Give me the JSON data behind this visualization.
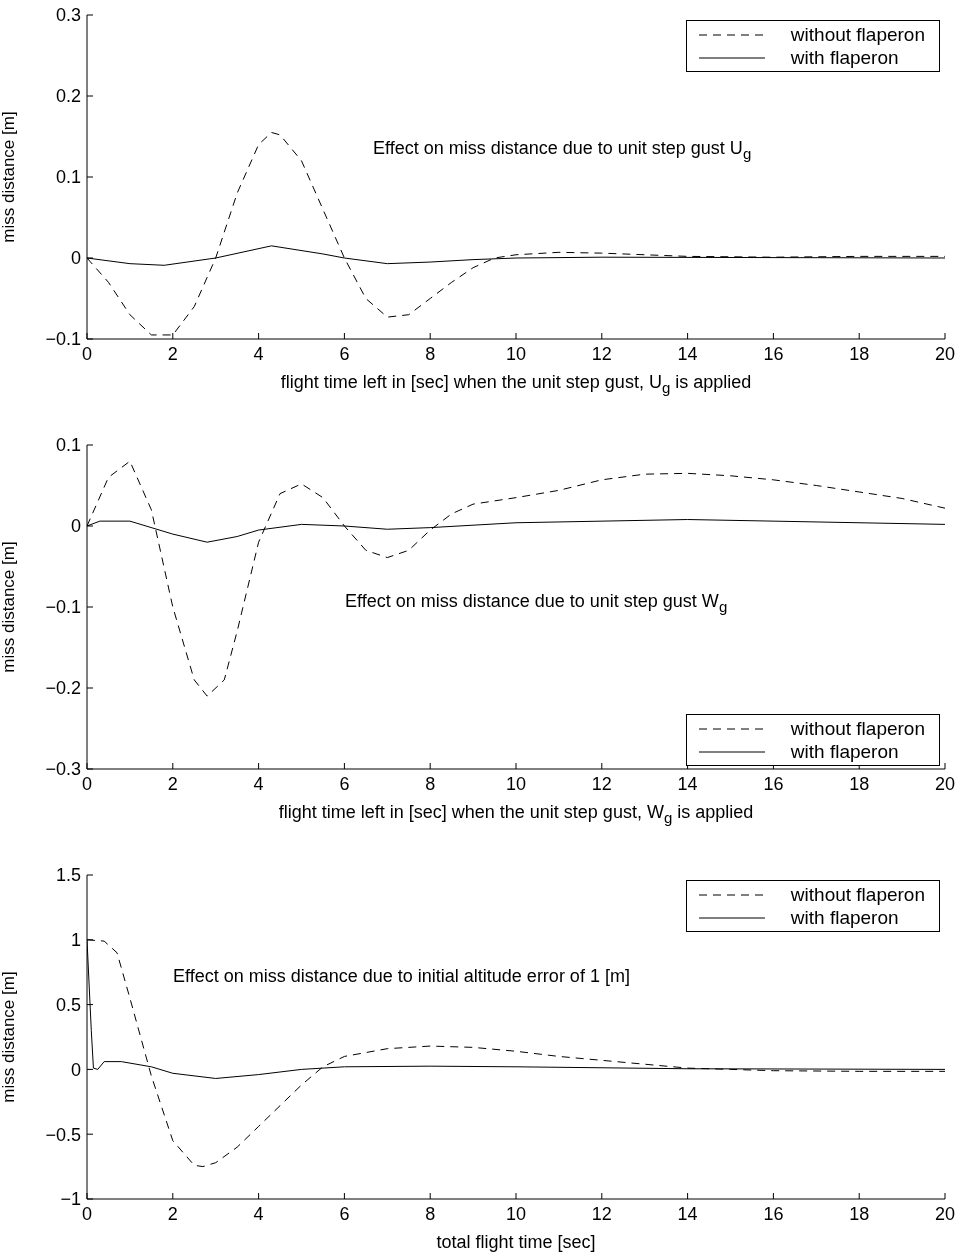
{
  "chart_data": [
    {
      "type": "line",
      "xlabel": "flight time left in [sec] when the unit step gust, U$_{g}$ is applied",
      "ylabel": "miss distance [m]",
      "annotations": [
        "Effect on miss distance due to unit step gust U$_{g}$"
      ],
      "xlim": [
        0,
        20
      ],
      "xticks": [
        0,
        2,
        4,
        6,
        8,
        10,
        12,
        14,
        16,
        18,
        20
      ],
      "ylim": [
        -0.1,
        0.3
      ],
      "yticks": [
        {
          "value": -0.1,
          "label": "−0.1"
        },
        0,
        0.1,
        0.2,
        0.3
      ],
      "legend": "top right",
      "series": [
        {
          "name": "without flaperon",
          "color": "#000000",
          "line_style": "dashed",
          "x": [
            0,
            0.5,
            1,
            1.5,
            2,
            2.5,
            3,
            3.5,
            4,
            4.3,
            4.5,
            5,
            5.5,
            6,
            6.5,
            7,
            7.5,
            8,
            8.5,
            9,
            9.5,
            10,
            11,
            12,
            13,
            14,
            16,
            18,
            20
          ],
          "values": [
            0,
            -0.03,
            -0.07,
            -0.095,
            -0.095,
            -0.06,
            0,
            0.08,
            0.14,
            0.155,
            0.152,
            0.12,
            0.06,
            0,
            -0.05,
            -0.073,
            -0.07,
            -0.05,
            -0.03,
            -0.012,
            0,
            0.004,
            0.007,
            0.006,
            0.004,
            0.002,
            0.001,
            0.002,
            0.002
          ]
        },
        {
          "name": "with flaperon",
          "color": "#000000",
          "line_style": "solid",
          "x": [
            0,
            1,
            1.8,
            3,
            4.3,
            5.5,
            6,
            7,
            8,
            9,
            10,
            12,
            20
          ],
          "values": [
            0,
            -0.007,
            -0.009,
            0,
            0.015,
            0.005,
            0,
            -0.007,
            -0.005,
            -0.002,
            0,
            0.001,
            0
          ]
        }
      ]
    },
    {
      "type": "line",
      "xlabel": "flight time left in [sec] when the unit step gust, W$_{g}$ is applied",
      "ylabel": "miss distance [m]",
      "annotations": [
        "Effect on miss distance due to unit step gust W$_{g}$"
      ],
      "xlim": [
        0,
        20
      ],
      "xticks": [
        0,
        2,
        4,
        6,
        8,
        10,
        12,
        14,
        16,
        18,
        20
      ],
      "ylim": [
        -0.3,
        0.1
      ],
      "yticks": [
        {
          "value": -0.3,
          "label": "−0.3"
        },
        {
          "value": -0.2,
          "label": "−0.2"
        },
        {
          "value": -0.1,
          "label": "−0.1"
        },
        0,
        0.1
      ],
      "legend": "bottom right",
      "series": [
        {
          "name": "without flaperon",
          "color": "#000000",
          "line_style": "dashed",
          "x": [
            0,
            0.5,
            1,
            1.5,
            2,
            2.5,
            2.8,
            3.2,
            3.5,
            4,
            4.5,
            5,
            5.5,
            6,
            6.5,
            7,
            7.5,
            8,
            8.5,
            9,
            10,
            11,
            12,
            13,
            14,
            15,
            16,
            17,
            18,
            19,
            20
          ],
          "values": [
            0,
            0.06,
            0.08,
            0.02,
            -0.1,
            -0.19,
            -0.21,
            -0.19,
            -0.13,
            -0.02,
            0.04,
            0.052,
            0.035,
            0,
            -0.03,
            -0.039,
            -0.03,
            -0.005,
            0.015,
            0.027,
            0.035,
            0.044,
            0.057,
            0.064,
            0.065,
            0.062,
            0.057,
            0.05,
            0.042,
            0.034,
            0.022
          ]
        },
        {
          "name": "with flaperon",
          "color": "#000000",
          "line_style": "solid",
          "x": [
            0,
            0.3,
            1,
            2,
            2.8,
            3.5,
            4,
            5,
            6,
            7,
            8,
            10,
            14,
            20
          ],
          "values": [
            0,
            0.006,
            0.006,
            -0.01,
            -0.02,
            -0.013,
            -0.005,
            0.002,
            0,
            -0.004,
            -0.002,
            0.004,
            0.008,
            0.002
          ]
        }
      ]
    },
    {
      "type": "line",
      "xlabel": "total flight time [sec]",
      "ylabel": "miss distance [m]",
      "annotations": [
        "Effect on miss distance due to initial altitude error of 1 [m]"
      ],
      "xlim": [
        0,
        20
      ],
      "xticks": [
        0,
        2,
        4,
        6,
        8,
        10,
        12,
        14,
        16,
        18,
        20
      ],
      "ylim": [
        -1,
        1.5
      ],
      "yticks": [
        {
          "value": -1,
          "label": "−1"
        },
        {
          "value": -0.5,
          "label": "−0.5"
        },
        0,
        0.5,
        1,
        1.5
      ],
      "legend": "top right",
      "series": [
        {
          "name": "without flaperon",
          "color": "#000000",
          "line_style": "dashed",
          "x": [
            0,
            0.4,
            0.7,
            1,
            1.5,
            2,
            2.5,
            2.7,
            3,
            3.5,
            4,
            4.5,
            5,
            5.5,
            6,
            7,
            8,
            9,
            10,
            11,
            12,
            13,
            14,
            15,
            16,
            18,
            20
          ],
          "values": [
            1,
            0.99,
            0.9,
            0.55,
            -0.05,
            -0.55,
            -0.74,
            -0.75,
            -0.72,
            -0.6,
            -0.44,
            -0.28,
            -0.12,
            0.02,
            0.1,
            0.16,
            0.18,
            0.17,
            0.14,
            0.1,
            0.07,
            0.04,
            0.01,
            0,
            -0.01,
            -0.015,
            -0.015
          ]
        },
        {
          "name": "with flaperon",
          "color": "#000000",
          "line_style": "solid",
          "x": [
            0,
            0.1,
            0.15,
            0.25,
            0.4,
            0.8,
            1.5,
            2,
            3,
            4,
            5,
            6,
            8,
            10,
            14,
            20
          ],
          "values": [
            1,
            0.3,
            0.01,
            0,
            0.06,
            0.06,
            0.02,
            -0.03,
            -0.07,
            -0.04,
            0,
            0.02,
            0.025,
            0.02,
            0.005,
            0
          ]
        }
      ]
    }
  ]
}
